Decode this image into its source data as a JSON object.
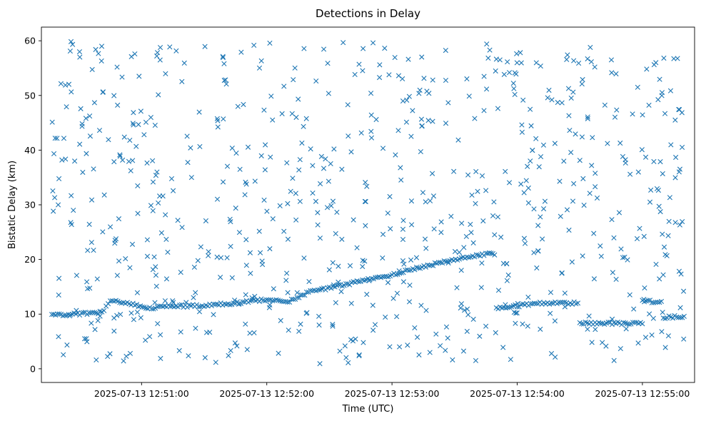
{
  "chart_data": {
    "type": "scatter",
    "title": "Detections in Delay",
    "xlabel": "Time (UTC)",
    "ylabel": "Bistatic Delay (km)",
    "marker": "x",
    "color": "#1f77b4",
    "grid": false,
    "x_range": [
      "2025-07-13 12:50:12",
      "2025-07-13 12:55:25"
    ],
    "ylim": [
      -2.5,
      62.5
    ],
    "x_ticks": [
      "2025-07-13 12:51:00",
      "2025-07-13 12:52:00",
      "2025-07-13 12:53:00",
      "2025-07-13 12:54:00",
      "2025-07-13 12:55:00"
    ],
    "y_ticks": [
      0,
      10,
      20,
      30,
      40,
      50,
      60
    ],
    "track": [
      [
        "2025-07-13 12:50:17",
        9.8
      ],
      [
        "2025-07-13 12:50:25",
        10.0
      ],
      [
        "2025-07-13 12:50:33",
        10.1
      ],
      [
        "2025-07-13 12:50:41",
        10.3
      ],
      [
        "2025-07-13 12:50:45",
        12.5
      ],
      [
        "2025-07-13 12:50:55",
        11.9
      ],
      [
        "2025-07-13 12:51:03",
        11.0
      ],
      [
        "2025-07-13 12:51:12",
        11.4
      ],
      [
        "2025-07-13 12:51:30",
        11.6
      ],
      [
        "2025-07-13 12:51:45",
        12.0
      ],
      [
        "2025-07-13 12:52:00",
        12.7
      ],
      [
        "2025-07-13 12:52:10",
        12.2
      ],
      [
        "2025-07-13 12:52:20",
        14.0
      ],
      [
        "2025-07-13 12:52:30",
        14.8
      ],
      [
        "2025-07-13 12:52:45",
        16.0
      ],
      [
        "2025-07-13 12:53:00",
        17.2
      ],
      [
        "2025-07-13 12:53:10",
        18.3
      ],
      [
        "2025-07-13 12:53:25",
        19.5
      ],
      [
        "2025-07-13 12:53:35",
        20.3
      ],
      [
        "2025-07-13 12:53:45",
        21.0
      ],
      [
        "2025-07-13 12:53:50",
        11.0
      ],
      [
        "2025-07-13 12:54:00",
        11.5
      ],
      [
        "2025-07-13 12:54:10",
        12.0
      ],
      [
        "2025-07-13 12:54:20",
        12.0
      ],
      [
        "2025-07-13 12:54:30",
        8.3
      ],
      [
        "2025-07-13 12:55:00",
        12.3
      ],
      [
        "2025-07-13 12:55:10",
        9.4
      ],
      [
        "2025-07-13 12:55:20",
        9.6
      ]
    ],
    "clutter_points": 750,
    "clutter_y_range": [
      0.5,
      60
    ]
  }
}
